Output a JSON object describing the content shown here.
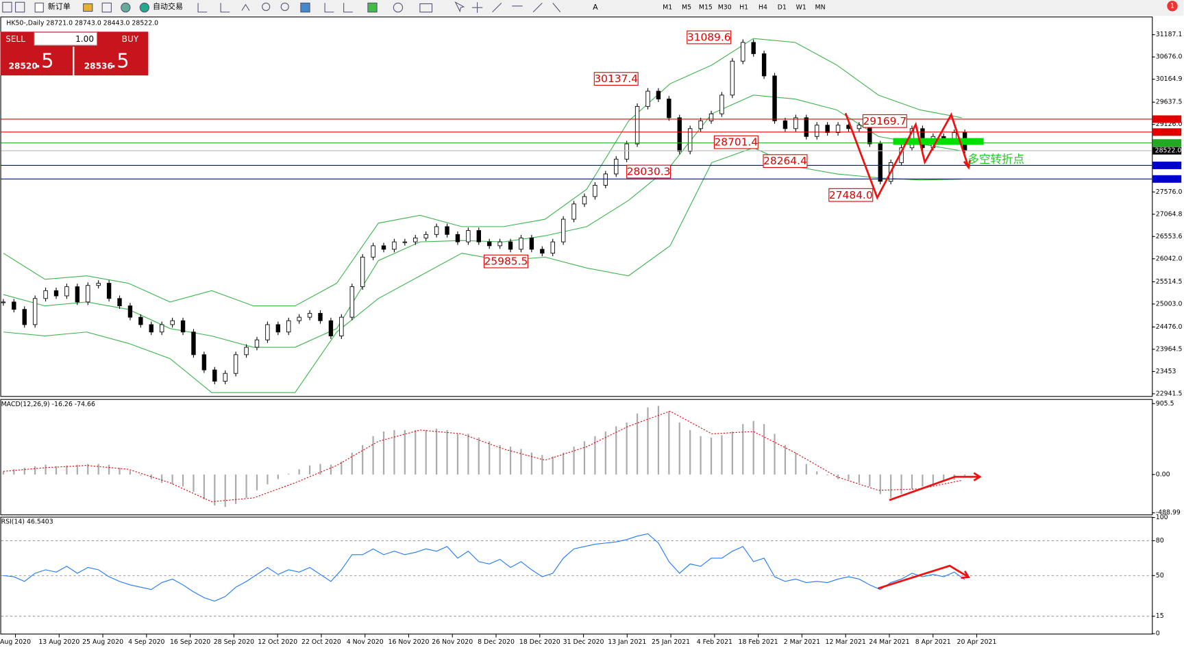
{
  "toolbar": {
    "new_order": "新订单",
    "auto_trade": "自动交易",
    "timeframes": [
      "M1",
      "M5",
      "M15",
      "M30",
      "H1",
      "H4",
      "D1",
      "W1",
      "MN"
    ],
    "badge": "1"
  },
  "trade_panel": {
    "sell": "SELL",
    "buy": "BUY",
    "lots": "1.00",
    "sell_price": "28520",
    "sell_pips": ".5",
    "buy_price": "28536",
    "buy_pips": ".5"
  },
  "chart_data": [
    {
      "type": "candlestick",
      "title": "HK50-,Daily 28721.0 28743.0 28443.0 28522.0",
      "close": [
        25050,
        24880,
        24530,
        25130,
        25310,
        25190,
        25400,
        25050,
        25430,
        25480,
        25130,
        24960,
        24700,
        24530,
        24360,
        24530,
        24620,
        24360,
        23840,
        23490,
        23230,
        23410,
        23840,
        24010,
        24180,
        24530,
        24360,
        24620,
        24700,
        24790,
        24620,
        24270,
        24700,
        25400,
        26080,
        26340,
        26260,
        26430,
        26430,
        26520,
        26600,
        26780,
        26600,
        26430,
        26690,
        26430,
        26340,
        26430,
        26260,
        26520,
        26260,
        26170,
        26430,
        26950,
        27300,
        27470,
        27730,
        27990,
        28330,
        28680,
        29540,
        29890,
        29710,
        29280,
        28510,
        29030,
        29210,
        29370,
        29800,
        30580,
        31010,
        30750,
        30240,
        29210,
        29030,
        29280,
        28850,
        29110,
        28940,
        29110,
        29030,
        29110,
        28680,
        27820,
        28250,
        28590,
        29030,
        28590,
        28850,
        28760,
        28940,
        28522
      ],
      "upper_band": [
        26170,
        25570,
        25650,
        25480,
        25050,
        25310,
        24960,
        24960,
        25480,
        26860,
        27040,
        26780,
        26780,
        26950,
        27640,
        29200,
        30060,
        30490,
        31100,
        31010,
        30490,
        29800,
        29460,
        29280
      ],
      "middle_band": [
        25220,
        24960,
        25050,
        24880,
        24440,
        24270,
        24010,
        24010,
        24440,
        26000,
        26430,
        26460,
        26430,
        26570,
        26780,
        27380,
        28160,
        29370,
        29800,
        29710,
        29460,
        28850,
        28680,
        28520
      ],
      "lower_band": [
        24360,
        24270,
        24360,
        24100,
        23750,
        22970,
        22970,
        22970,
        24360,
        25130,
        25650,
        26170,
        26000,
        26080,
        25830,
        25650,
        26340,
        28250,
        28590,
        28160,
        27990,
        27900,
        27850,
        27870
      ],
      "band_color": "#3cb44b",
      "ylim": [
        22890,
        31585
      ],
      "yticks": [
        31187.1,
        {
          "value": 30676.0,
          "label": "30676.0"
        },
        30164.9,
        29637.5,
        {
          "value": 29126.0,
          "label": "29126.0"
        },
        {
          "value": 27576.0,
          "label": "27576.0"
        },
        27064.8,
        26553.6,
        {
          "value": 26042.0,
          "label": "26042.0"
        },
        25514.5,
        {
          "value": 25003.0,
          "label": "25003.0"
        },
        {
          "value": 24476.0,
          "label": "24476.0"
        },
        23964.5,
        23453.0,
        22941.5
      ],
      "levels": [
        {
          "value": 29247.7,
          "color": "#e00000"
        },
        {
          "value": 28951.2,
          "color": "#e00000"
        },
        {
          "value": 28701.4,
          "color": "#22aa22"
        },
        {
          "value": 28522.0,
          "label": "28522.0",
          "color": "#000000"
        },
        {
          "value": 28186.3,
          "color": "#0000cc"
        },
        {
          "value": 27874.2,
          "color": "#0000cc"
        }
      ],
      "annotations": [
        "31089.6",
        "30137.4",
        "28701.4",
        "28030.3",
        "28264.4",
        "29169.7",
        "27484.0",
        "25985.5"
      ],
      "note": "多空转折点",
      "date_labels": [
        "Aug 2020",
        "13 Aug 2020",
        "25 Aug 2020",
        "4 Sep 2020",
        "16 Sep 2020",
        "28 Sep 2020",
        "12 Oct 2020",
        "22 Oct 2020",
        "4 Nov 2020",
        "16 Nov 2020",
        "26 Nov 2020",
        "8 Dec 2020",
        "18 Dec 2020",
        "31 Dec 2020",
        "13 Jan 2021",
        "25 Jan 2021",
        "4 Feb 2021",
        "18 Feb 2021",
        "2 Mar 2021",
        "12 Mar 2021",
        "24 Mar 2021",
        "8 Apr 2021",
        "20 Apr 2021"
      ]
    },
    {
      "type": "macd",
      "title": "MACD(12,26,9) -16.26 -74.66",
      "values": [
        40,
        67,
        87,
        106,
        125,
        106,
        116,
        125,
        135,
        135,
        125,
        87,
        48,
        -10,
        -58,
        -106,
        -125,
        -154,
        -221,
        -318,
        -395,
        -414,
        -376,
        -299,
        -202,
        -125,
        -58,
        10,
        67,
        116,
        135,
        125,
        164,
        279,
        376,
        491,
        549,
        568,
        568,
        568,
        568,
        587,
        568,
        520,
        520,
        472,
        424,
        376,
        356,
        327,
        279,
        250,
        231,
        279,
        356,
        424,
        491,
        549,
        616,
        664,
        780,
        857,
        876,
        809,
        664,
        568,
        491,
        472,
        501,
        549,
        645,
        684,
        645,
        520,
        376,
        279,
        135,
        40,
        -10,
        -58,
        -67,
        -106,
        -154,
        -250,
        -299,
        -250,
        -183,
        -154,
        -125,
        -87,
        -67,
        -16.26
      ],
      "signal": [
        40,
        87,
        116,
        67,
        -106,
        -347,
        -299,
        -106,
        116,
        424,
        568,
        520,
        327,
        183,
        356,
        616,
        809,
        520,
        549,
        279,
        -29,
        -202,
        -183,
        -74.66
      ],
      "ylim": [
        -520,
        954
      ],
      "yticks": [
        905.5,
        {
          "value": 0,
          "label": "0.00"
        },
        -488.99
      ]
    },
    {
      "type": "rsi",
      "title": "RSI(14) 46.5403",
      "color": "#1e78ff",
      "values": [
        50,
        49,
        45,
        52,
        55,
        53,
        58,
        52,
        57,
        55,
        49,
        45,
        42,
        40,
        38,
        44,
        47,
        42,
        36,
        31,
        28,
        32,
        40,
        45,
        51,
        57,
        51,
        55,
        53,
        57,
        51,
        45,
        55,
        68,
        68,
        73,
        68,
        71,
        68,
        70,
        73,
        71,
        75,
        65,
        71,
        62,
        60,
        64,
        57,
        62,
        55,
        49,
        52,
        65,
        73,
        75,
        77,
        78,
        79,
        81,
        84,
        86,
        78,
        62,
        52,
        60,
        58,
        65,
        65,
        71,
        75,
        62,
        65,
        49,
        45,
        47,
        44,
        45,
        44,
        47,
        49,
        47,
        42,
        38,
        44,
        47,
        52,
        49,
        51,
        49,
        53,
        46.5403
      ],
      "ylim": [
        0,
        100
      ],
      "yticks": [
        100,
        80,
        50,
        15,
        0
      ]
    }
  ]
}
